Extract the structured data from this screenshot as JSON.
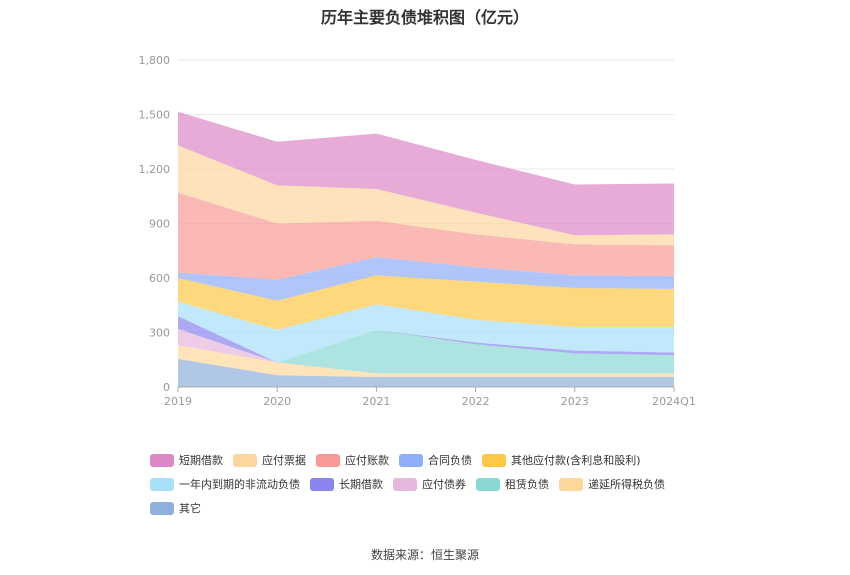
{
  "chart_data": {
    "type": "area",
    "title": "历年主要负债堆积图（亿元）",
    "stacked": true,
    "categories": [
      "2019",
      "2020",
      "2021",
      "2022",
      "2023",
      "2024Q1"
    ],
    "ylim": [
      0,
      1800
    ],
    "yticks": [
      "0",
      "300",
      "600",
      "900",
      "1,200",
      "1,500",
      "1,800"
    ],
    "grid": true,
    "legend_position": "bottom",
    "series": [
      {
        "name": "其它",
        "color": "#8fb0dc",
        "values": [
          155,
          65,
          55,
          55,
          55,
          55
        ]
      },
      {
        "name": "递延所得税负债",
        "color": "#fdd89a",
        "values": [
          75,
          70,
          20,
          20,
          20,
          20
        ]
      },
      {
        "name": "租赁负债",
        "color": "#8ad8d4",
        "values": [
          0,
          0,
          240,
          160,
          110,
          100
        ]
      },
      {
        "name": "应付债券",
        "color": "#e6b8dc",
        "values": [
          90,
          0,
          0,
          0,
          0,
          0
        ]
      },
      {
        "name": "长期借款",
        "color": "#8a84ee",
        "values": [
          70,
          0,
          0,
          10,
          15,
          15
        ]
      },
      {
        "name": "一年内到期的非流动负债",
        "color": "#a8e0fa",
        "values": [
          80,
          180,
          140,
          125,
          130,
          140
        ]
      },
      {
        "name": "其他应付款(含利息和股利)",
        "color": "#fcc845",
        "values": [
          130,
          160,
          160,
          210,
          215,
          210
        ]
      },
      {
        "name": "合同负债",
        "color": "#8eaef8",
        "values": [
          30,
          115,
          100,
          80,
          70,
          70
        ]
      },
      {
        "name": "应付账款",
        "color": "#f89b96",
        "values": [
          440,
          310,
          200,
          180,
          170,
          170
        ]
      },
      {
        "name": "应付票据",
        "color": "#fdd5a0",
        "values": [
          260,
          210,
          175,
          120,
          50,
          60
        ]
      },
      {
        "name": "短期借款",
        "color": "#dd88c6",
        "values": [
          185,
          240,
          305,
          290,
          280,
          280
        ]
      }
    ]
  },
  "legend_rows": [
    [
      "短期借款",
      "应付票据",
      "应付账款",
      "合同负债",
      "其他应付款(含利息和股利)"
    ],
    [
      "一年内到期的非流动负债",
      "长期借款",
      "应付债券",
      "租赁负债",
      "递延所得税负债"
    ],
    [
      "其它"
    ]
  ],
  "source": "数据来源：恒生聚源"
}
